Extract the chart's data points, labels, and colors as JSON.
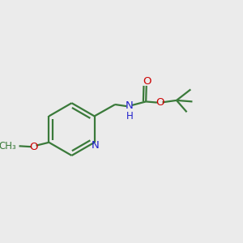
{
  "bg_color": "#ebebeb",
  "bond_color": "#3a7a3a",
  "N_color": "#2020cc",
  "O_color": "#cc0000",
  "lw": 1.6,
  "figsize": [
    3.0,
    3.0
  ],
  "dpi": 100,
  "xlim": [
    0.0,
    1.0
  ],
  "ylim": [
    0.1,
    0.9
  ]
}
